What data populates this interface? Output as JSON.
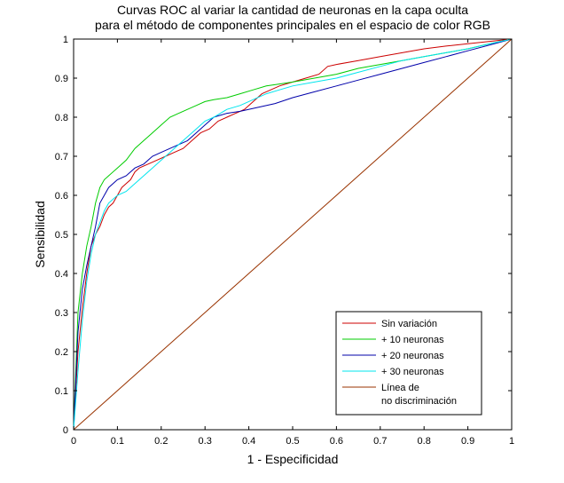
{
  "chart_data": {
    "type": "line",
    "title_line1": "Curvas ROC al variar la cantidad de neuronas en la capa oculta",
    "title_line2": "para el método de componentes principales en el espacio de color RGB",
    "xlabel": "1 - Especificidad",
    "ylabel": "Sensibilidad",
    "xlim": [
      0,
      1
    ],
    "ylim": [
      0,
      1
    ],
    "xticks": [
      "0",
      "0.1",
      "0.2",
      "0.3",
      "0.4",
      "0.5",
      "0.6",
      "0.7",
      "0.8",
      "0.9",
      "1"
    ],
    "yticks": [
      "0",
      "0.1",
      "0.2",
      "0.3",
      "0.4",
      "0.5",
      "0.6",
      "0.7",
      "0.8",
      "0.9",
      "1"
    ],
    "grid": false,
    "legend_position": "bottom-right",
    "series": [
      {
        "name": "Sin variación",
        "color": "#cc0000",
        "x": [
          0,
          0.01,
          0.02,
          0.03,
          0.04,
          0.05,
          0.06,
          0.07,
          0.08,
          0.09,
          0.1,
          0.11,
          0.12,
          0.13,
          0.14,
          0.15,
          0.17,
          0.19,
          0.21,
          0.23,
          0.25,
          0.27,
          0.29,
          0.31,
          0.33,
          0.35,
          0.37,
          0.39,
          0.41,
          0.43,
          0.45,
          0.47,
          0.5,
          0.53,
          0.56,
          0.58,
          0.6,
          0.65,
          0.7,
          0.75,
          0.8,
          0.85,
          0.9,
          0.95,
          1
        ],
        "y": [
          0,
          0.2,
          0.31,
          0.4,
          0.47,
          0.5,
          0.52,
          0.55,
          0.57,
          0.58,
          0.6,
          0.62,
          0.63,
          0.64,
          0.66,
          0.67,
          0.68,
          0.69,
          0.7,
          0.71,
          0.72,
          0.74,
          0.76,
          0.77,
          0.79,
          0.8,
          0.81,
          0.82,
          0.84,
          0.86,
          0.87,
          0.88,
          0.89,
          0.9,
          0.91,
          0.93,
          0.935,
          0.945,
          0.955,
          0.965,
          0.975,
          0.982,
          0.988,
          0.994,
          1
        ]
      },
      {
        "name": "+ 10 neuronas",
        "color": "#00cc00",
        "x": [
          0,
          0.01,
          0.02,
          0.03,
          0.04,
          0.05,
          0.06,
          0.07,
          0.08,
          0.1,
          0.12,
          0.14,
          0.16,
          0.18,
          0.2,
          0.22,
          0.24,
          0.26,
          0.28,
          0.3,
          0.32,
          0.35,
          0.38,
          0.41,
          0.44,
          0.47,
          0.5,
          0.55,
          0.6,
          0.65,
          0.7,
          0.75,
          0.8,
          0.85,
          0.9,
          0.95,
          1
        ],
        "y": [
          0,
          0.3,
          0.4,
          0.47,
          0.52,
          0.58,
          0.62,
          0.64,
          0.65,
          0.67,
          0.69,
          0.72,
          0.74,
          0.76,
          0.78,
          0.8,
          0.81,
          0.82,
          0.83,
          0.84,
          0.845,
          0.85,
          0.86,
          0.87,
          0.88,
          0.885,
          0.89,
          0.9,
          0.91,
          0.925,
          0.935,
          0.945,
          0.955,
          0.965,
          0.975,
          0.988,
          1
        ]
      },
      {
        "name": "+ 20 neuronas",
        "color": "#0000aa",
        "x": [
          0,
          0.01,
          0.02,
          0.03,
          0.04,
          0.05,
          0.06,
          0.07,
          0.08,
          0.1,
          0.12,
          0.14,
          0.16,
          0.18,
          0.2,
          0.22,
          0.24,
          0.26,
          0.28,
          0.3,
          0.32,
          0.35,
          0.38,
          0.42,
          0.46,
          0.5,
          0.55,
          0.6,
          0.65,
          0.7,
          0.75,
          0.8,
          0.85,
          0.9,
          0.95,
          1
        ],
        "y": [
          0,
          0.25,
          0.36,
          0.42,
          0.47,
          0.52,
          0.58,
          0.6,
          0.62,
          0.64,
          0.65,
          0.67,
          0.68,
          0.7,
          0.71,
          0.72,
          0.73,
          0.74,
          0.76,
          0.78,
          0.8,
          0.81,
          0.815,
          0.825,
          0.835,
          0.85,
          0.865,
          0.88,
          0.895,
          0.91,
          0.925,
          0.94,
          0.955,
          0.97,
          0.985,
          1
        ]
      },
      {
        "name": "+ 30 neuronas",
        "color": "#00e5ee",
        "x": [
          0,
          0.01,
          0.02,
          0.03,
          0.04,
          0.05,
          0.06,
          0.07,
          0.08,
          0.1,
          0.12,
          0.14,
          0.16,
          0.18,
          0.2,
          0.22,
          0.24,
          0.26,
          0.28,
          0.3,
          0.32,
          0.35,
          0.38,
          0.41,
          0.44,
          0.47,
          0.5,
          0.55,
          0.6,
          0.65,
          0.7,
          0.75,
          0.8,
          0.85,
          0.9,
          0.95,
          1
        ],
        "y": [
          0,
          0.15,
          0.28,
          0.38,
          0.45,
          0.5,
          0.53,
          0.56,
          0.58,
          0.6,
          0.61,
          0.63,
          0.65,
          0.67,
          0.69,
          0.71,
          0.73,
          0.75,
          0.77,
          0.79,
          0.8,
          0.82,
          0.83,
          0.845,
          0.86,
          0.87,
          0.88,
          0.89,
          0.9,
          0.915,
          0.93,
          0.945,
          0.955,
          0.965,
          0.975,
          0.988,
          1
        ]
      },
      {
        "name": "Línea de\nno discriminación",
        "color": "#993300",
        "x": [
          0,
          1
        ],
        "y": [
          0,
          1
        ]
      }
    ],
    "legend_labels": [
      [
        "Sin variación"
      ],
      [
        "+ 10 neuronas"
      ],
      [
        "+ 20 neuronas"
      ],
      [
        "+ 30 neuronas"
      ],
      [
        "Línea de",
        "no discriminación"
      ]
    ]
  }
}
